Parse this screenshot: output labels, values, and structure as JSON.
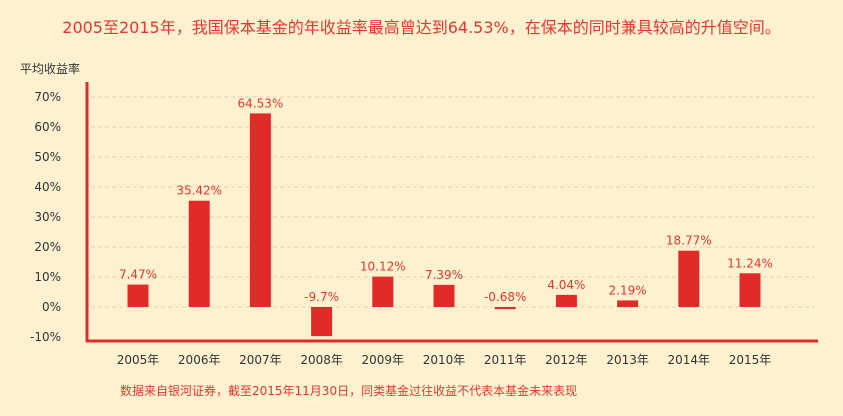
{
  "headline": "2005至2015年，我国保本基金的年收益率最高曾达到64.53%，在保本的同时兼具较高的升值空间。",
  "footnote": "数据来自银河证券，截至2015年11月30日，同类基金过往收益不代表本基金未来表现",
  "colors": {
    "bar": "#e22a28",
    "axis": "#e22a28",
    "text": "#333333",
    "label": "#e03a32",
    "grid": "#ddd3b6"
  },
  "chart_data": {
    "type": "bar",
    "ylabel": "平均收益率",
    "xlabel": "",
    "ylim": [
      -10,
      70
    ],
    "yticks": [
      -10,
      0,
      10,
      20,
      30,
      40,
      50,
      60,
      70
    ],
    "ytick_labels": [
      "-10%",
      "0%",
      "10%",
      "20%",
      "30%",
      "40%",
      "50%",
      "60%",
      "70%"
    ],
    "grid": true,
    "categories": [
      "2005年",
      "2006年",
      "2007年",
      "2008年",
      "2009年",
      "2010年",
      "2011年",
      "2012年",
      "2013年",
      "2014年",
      "2015年"
    ],
    "values": [
      7.47,
      35.42,
      64.53,
      -9.7,
      10.12,
      7.39,
      -0.68,
      4.04,
      2.19,
      18.77,
      11.24
    ],
    "value_labels": [
      "7.47%",
      "35.42%",
      "64.53%",
      "-9.7%",
      "10.12%",
      "7.39%",
      "-0.68%",
      "4.04%",
      "2.19%",
      "18.77%",
      "11.24%"
    ]
  }
}
